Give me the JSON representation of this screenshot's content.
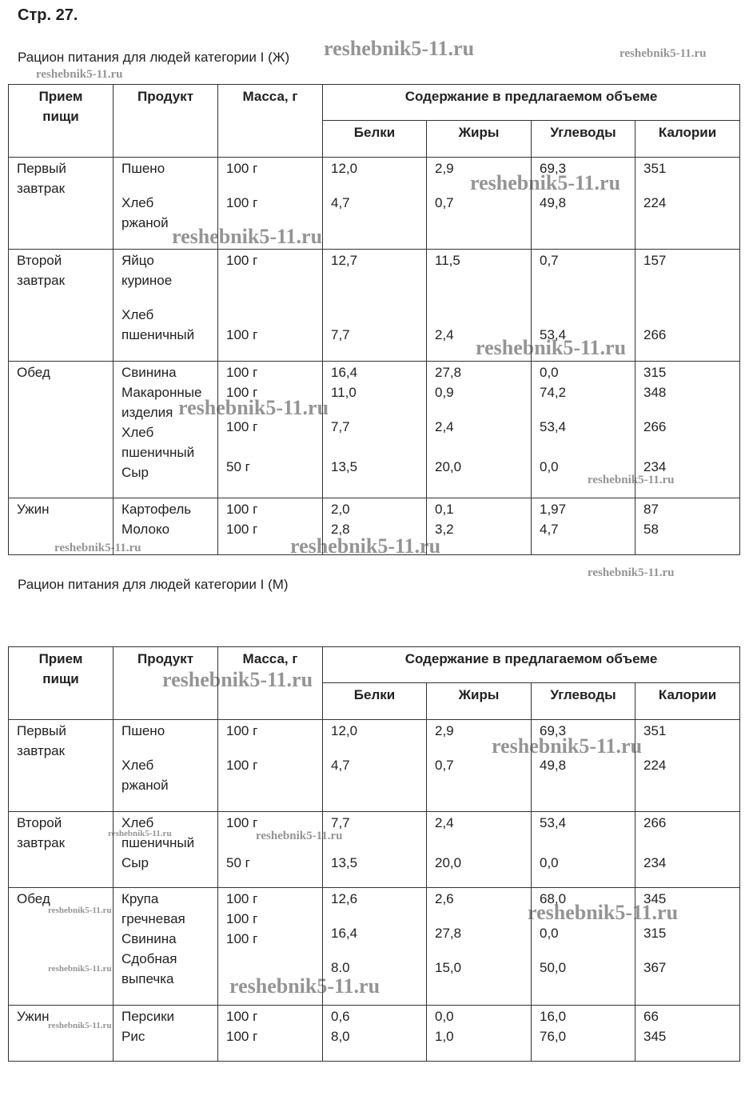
{
  "page_number": "Стр. 27.",
  "watermark": "reshebnik5-11.ru",
  "tables": [
    {
      "caption": "Рацион питания для людей категории I (Ж)",
      "headers": {
        "meal_line1": "Прием",
        "meal_line2": "пищи",
        "product": "Продукт",
        "mass": "Масса, г",
        "content": "Содержание в предлагаемом объеме",
        "proteins": "Белки",
        "fats": "Жиры",
        "carbs": "Углеводы",
        "calories": "Калории"
      },
      "rows": [
        {
          "meal": [
            "Первый",
            "завтрак"
          ],
          "product": [
            "Пшено",
            "",
            "Хлеб",
            "ржаной"
          ],
          "mass": [
            "100 г",
            "",
            "100 г"
          ],
          "proteins": [
            "12,0",
            "",
            "4,7"
          ],
          "fats": [
            "2,9",
            "",
            "0,7"
          ],
          "carbs": [
            "69,3",
            "",
            "49,8"
          ],
          "calories": [
            "351",
            "",
            "224"
          ]
        },
        {
          "meal": [
            "Второй",
            "завтрак"
          ],
          "product": [
            "Яйцо",
            "куриное",
            "",
            "Хлеб",
            "пшеничный"
          ],
          "mass": [
            "100 г",
            "",
            "",
            "",
            "100 г"
          ],
          "proteins": [
            "12,7",
            "",
            "",
            "",
            "7,7"
          ],
          "fats": [
            "11,5",
            "",
            "",
            "",
            "2,4"
          ],
          "carbs": [
            "0,7",
            "",
            "",
            "",
            "53,4"
          ],
          "calories": [
            "157",
            "",
            "",
            "",
            "266"
          ]
        },
        {
          "meal": [
            "Обед"
          ],
          "product": [
            "Свинина",
            "Макаронные",
            "изделия",
            "Хлеб",
            "пшеничный",
            "Сыр"
          ],
          "mass": [
            "100 г",
            "100 г",
            "",
            "100 г",
            "",
            "50 г"
          ],
          "proteins": [
            "16,4",
            "11,0",
            "",
            "7,7",
            "",
            "13,5"
          ],
          "fats": [
            "27,8",
            "0,9",
            "",
            "2,4",
            "",
            "20,0"
          ],
          "carbs": [
            "0,0",
            "74,2",
            "",
            "53,4",
            "",
            "0,0"
          ],
          "calories": [
            "315",
            "348",
            "",
            "266",
            "",
            "234"
          ]
        },
        {
          "meal": [
            "Ужин"
          ],
          "product": [
            "Картофель",
            "Молоко"
          ],
          "mass": [
            "100 г",
            "100 г"
          ],
          "proteins": [
            "2,0",
            "2,8"
          ],
          "fats": [
            "0,1",
            "3,2"
          ],
          "carbs": [
            "1,97",
            "4,7"
          ],
          "calories": [
            "87",
            "58"
          ]
        }
      ]
    },
    {
      "caption": "Рацион питания для людей категории I (М)",
      "headers": {
        "meal_line1": "Прием",
        "meal_line2": "пищи",
        "product": "Продукт",
        "mass": "Масса, г",
        "content": "Содержание в предлагаемом объеме",
        "proteins": "Белки",
        "fats": "Жиры",
        "carbs": "Углеводы",
        "calories": "Калории"
      },
      "rows": [
        {
          "meal": [
            "Первый",
            "завтрак"
          ],
          "product": [
            "Пшено",
            "",
            "Хлеб",
            "ржаной"
          ],
          "mass": [
            "100 г",
            "",
            "100 г"
          ],
          "proteins": [
            "12,0",
            "",
            "4,7"
          ],
          "fats": [
            "2,9",
            "",
            "0,7"
          ],
          "carbs": [
            "69,3",
            "",
            "49,8"
          ],
          "calories": [
            "351",
            "",
            "224"
          ]
        },
        {
          "meal": [
            "Второй",
            "завтрак"
          ],
          "product": [
            "Хлеб",
            "пшеничный",
            "Сыр"
          ],
          "mass": [
            "100 г",
            "",
            "50 г"
          ],
          "proteins": [
            "7,7",
            "",
            "13,5"
          ],
          "fats": [
            "2,4",
            "",
            "20,0"
          ],
          "carbs": [
            "53,4",
            "",
            "0,0"
          ],
          "calories": [
            "266",
            "",
            "234"
          ]
        },
        {
          "meal": [
            "Обед"
          ],
          "product": [
            "Крупа",
            "гречневая",
            "Свинина",
            "Сдобная",
            "выпечка"
          ],
          "mass": [
            "100 г",
            "100 г",
            "100 г"
          ],
          "proteins": [
            "12,6",
            "",
            "16,4",
            "",
            "8.0"
          ],
          "fats": [
            "2,6",
            "",
            "27,8",
            "",
            "15,0"
          ],
          "carbs": [
            "68,0",
            "",
            "0,0",
            "",
            "50,0"
          ],
          "calories": [
            "345",
            "",
            "315",
            "",
            "367"
          ]
        },
        {
          "meal": [
            "Ужин"
          ],
          "product": [
            "Персики",
            "Рис"
          ],
          "mass": [
            "100 г",
            "100 г"
          ],
          "proteins": [
            "0,6",
            "8,0"
          ],
          "fats": [
            "0,0",
            "1,0"
          ],
          "carbs": [
            "16,0",
            "76,0"
          ],
          "calories": [
            "66",
            "345"
          ]
        }
      ]
    }
  ]
}
